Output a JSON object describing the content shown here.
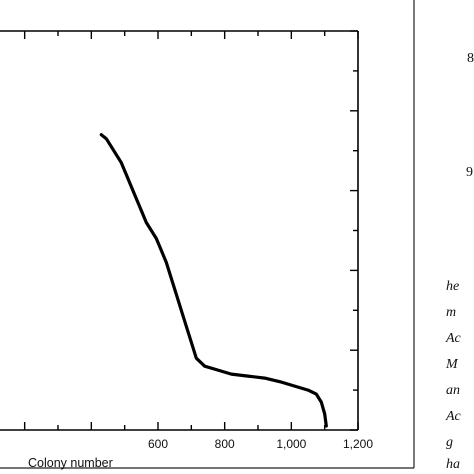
{
  "chart_data": {
    "type": "line",
    "xlabel": "Colony number",
    "xlim": [
      0,
      1200
    ],
    "x_ticks": [
      {
        "value": 600,
        "label": "600"
      },
      {
        "value": 800,
        "label": "800"
      },
      {
        "value": 1000,
        "label": "1,000"
      },
      {
        "value": 1200,
        "label": "1,200"
      }
    ],
    "series": [
      {
        "color": "#000000",
        "x": [
          430,
          445,
          460,
          475,
          490,
          505,
          520,
          535,
          550,
          565,
          580,
          595,
          610,
          625,
          640,
          655,
          670,
          685,
          700,
          715,
          740,
          780,
          820,
          870,
          920,
          970,
          1010,
          1050,
          1075,
          1090,
          1100,
          1105
        ],
        "y": [
          0.74,
          0.73,
          0.71,
          0.69,
          0.67,
          0.64,
          0.61,
          0.58,
          0.55,
          0.52,
          0.5,
          0.48,
          0.45,
          0.42,
          0.38,
          0.34,
          0.3,
          0.26,
          0.22,
          0.18,
          0.16,
          0.15,
          0.14,
          0.135,
          0.13,
          0.12,
          0.11,
          0.1,
          0.09,
          0.07,
          0.04,
          0.01
        ]
      }
    ]
  },
  "side_text": {
    "numbers": [
      "8",
      "9"
    ],
    "lines": [
      "he",
      "m",
      "Ac",
      "M",
      "an",
      "Ac",
      "g",
      "ha"
    ]
  }
}
